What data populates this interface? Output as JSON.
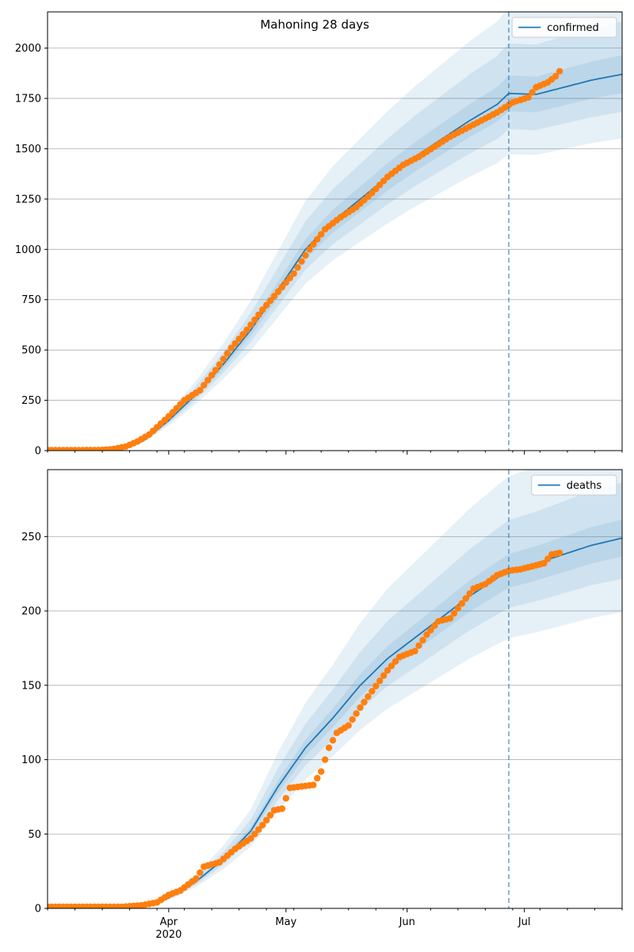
{
  "chart_data": [
    {
      "type": "line",
      "title": "Mahoning 28 days",
      "xlabel": "",
      "ylabel": "",
      "ylim": [
        0,
        2180
      ],
      "xlim": [
        "2020-03-01",
        "2020-07-26"
      ],
      "y_ticks": [
        0,
        250,
        500,
        750,
        1000,
        1250,
        1500,
        1750,
        2000
      ],
      "x_tick_labels": [
        {
          "date": "2020-04-01",
          "label": "Apr",
          "sublabel": "2020"
        },
        {
          "date": "2020-05-01",
          "label": "May",
          "sublabel": ""
        },
        {
          "date": "2020-06-01",
          "label": "Jun",
          "sublabel": ""
        },
        {
          "date": "2020-07-01",
          "label": "Jul",
          "sublabel": ""
        }
      ],
      "grid": "horizontal",
      "legend": {
        "position": "top-right",
        "entries": [
          "confirmed"
        ]
      },
      "forecast_start": "2020-06-27",
      "series": [
        {
          "name": "confirmed",
          "kind": "model-median",
          "color": "#1f77b4",
          "points": [
            [
              "2020-03-01",
              0
            ],
            [
              "2020-03-15",
              2
            ],
            [
              "2020-03-22",
              18
            ],
            [
              "2020-03-26",
              55
            ],
            [
              "2020-04-01",
              150
            ],
            [
              "2020-04-08",
              280
            ],
            [
              "2020-04-15",
              430
            ],
            [
              "2020-04-22",
              600
            ],
            [
              "2020-04-29",
              800
            ],
            [
              "2020-05-06",
              1000
            ],
            [
              "2020-05-13",
              1140
            ],
            [
              "2020-05-20",
              1250
            ],
            [
              "2020-05-27",
              1360
            ],
            [
              "2020-06-03",
              1460
            ],
            [
              "2020-06-10",
              1550
            ],
            [
              "2020-06-17",
              1640
            ],
            [
              "2020-06-24",
              1720
            ],
            [
              "2020-06-27",
              1775
            ],
            [
              "2020-07-04",
              1770
            ],
            [
              "2020-07-11",
              1805
            ],
            [
              "2020-07-18",
              1840
            ],
            [
              "2020-07-26",
              1870
            ]
          ],
          "bands": [
            {
              "level": "inner",
              "lower_pct": -5,
              "upper_pct": 5
            },
            {
              "level": "middle",
              "lower_pct": -10,
              "upper_pct": 14
            },
            {
              "level": "outer",
              "lower_pct": -17,
              "upper_pct": 24
            }
          ]
        },
        {
          "name": "confirmed",
          "kind": "observed",
          "color": "#ff7f0e",
          "points": [
            [
              "2020-03-01",
              2
            ],
            [
              "2020-03-08",
              2
            ],
            [
              "2020-03-15",
              3
            ],
            [
              "2020-03-18",
              8
            ],
            [
              "2020-03-21",
              20
            ],
            [
              "2020-03-24",
              45
            ],
            [
              "2020-03-27",
              80
            ],
            [
              "2020-04-01",
              170
            ],
            [
              "2020-04-05",
              250
            ],
            [
              "2020-04-09",
              300
            ],
            [
              "2020-04-13",
              400
            ],
            [
              "2020-04-17",
              510
            ],
            [
              "2020-04-21",
              600
            ],
            [
              "2020-04-25",
              700
            ],
            [
              "2020-04-29",
              790
            ],
            [
              "2020-05-03",
              880
            ],
            [
              "2020-05-07",
              1000
            ],
            [
              "2020-05-11",
              1100
            ],
            [
              "2020-05-15",
              1160
            ],
            [
              "2020-05-19",
              1210
            ],
            [
              "2020-05-23",
              1280
            ],
            [
              "2020-05-27",
              1360
            ],
            [
              "2020-05-31",
              1420
            ],
            [
              "2020-06-04",
              1460
            ],
            [
              "2020-06-08",
              1510
            ],
            [
              "2020-06-12",
              1560
            ],
            [
              "2020-06-16",
              1600
            ],
            [
              "2020-06-20",
              1640
            ],
            [
              "2020-06-24",
              1680
            ],
            [
              "2020-06-28",
              1730
            ],
            [
              "2020-07-02",
              1755
            ],
            [
              "2020-07-04",
              1805
            ],
            [
              "2020-07-07",
              1830
            ],
            [
              "2020-07-09",
              1860
            ],
            [
              "2020-07-10",
              1885
            ]
          ]
        }
      ]
    },
    {
      "type": "line",
      "title": "",
      "xlabel": "",
      "ylabel": "",
      "ylim": [
        0,
        295
      ],
      "xlim": [
        "2020-03-01",
        "2020-07-26"
      ],
      "y_ticks": [
        0,
        50,
        100,
        150,
        200,
        250
      ],
      "x_tick_labels": [
        {
          "date": "2020-04-01",
          "label": "Apr",
          "sublabel": "2020"
        },
        {
          "date": "2020-05-01",
          "label": "May",
          "sublabel": ""
        },
        {
          "date": "2020-06-01",
          "label": "Jun",
          "sublabel": ""
        },
        {
          "date": "2020-07-01",
          "label": "Jul",
          "sublabel": ""
        }
      ],
      "grid": "horizontal",
      "legend": {
        "position": "top-right",
        "entries": [
          "deaths"
        ]
      },
      "forecast_start": "2020-06-27",
      "series": [
        {
          "name": "deaths",
          "kind": "model-median",
          "color": "#1f77b4",
          "points": [
            [
              "2020-03-01",
              0
            ],
            [
              "2020-03-15",
              1
            ],
            [
              "2020-03-22",
              2
            ],
            [
              "2020-03-27",
              3
            ],
            [
              "2020-04-01",
              7
            ],
            [
              "2020-04-08",
              18
            ],
            [
              "2020-04-15",
              33
            ],
            [
              "2020-04-22",
              52
            ],
            [
              "2020-04-29",
              82
            ],
            [
              "2020-05-06",
              108
            ],
            [
              "2020-05-13",
              128
            ],
            [
              "2020-05-20",
              150
            ],
            [
              "2020-05-27",
              168
            ],
            [
              "2020-06-03",
              182
            ],
            [
              "2020-06-10",
              196
            ],
            [
              "2020-06-17",
              210
            ],
            [
              "2020-06-24",
              222
            ],
            [
              "2020-06-27",
              227
            ],
            [
              "2020-07-04",
              232
            ],
            [
              "2020-07-11",
              238
            ],
            [
              "2020-07-18",
              244
            ],
            [
              "2020-07-26",
              249
            ]
          ],
          "bands": [
            {
              "level": "inner",
              "lower_pct": -5,
              "upper_pct": 5
            },
            {
              "level": "middle",
              "lower_pct": -11,
              "upper_pct": 15
            },
            {
              "level": "outer",
              "lower_pct": -20,
              "upper_pct": 28
            }
          ]
        },
        {
          "name": "deaths",
          "kind": "observed",
          "color": "#ff7f0e",
          "points": [
            [
              "2020-03-01",
              1
            ],
            [
              "2020-03-10",
              1
            ],
            [
              "2020-03-20",
              1
            ],
            [
              "2020-03-25",
              2
            ],
            [
              "2020-03-29",
              4
            ],
            [
              "2020-04-01",
              9
            ],
            [
              "2020-04-04",
              12
            ],
            [
              "2020-04-08",
              20
            ],
            [
              "2020-04-10",
              28
            ],
            [
              "2020-04-14",
              31
            ],
            [
              "2020-04-18",
              40
            ],
            [
              "2020-04-22",
              47
            ],
            [
              "2020-04-25",
              56
            ],
            [
              "2020-04-28",
              66
            ],
            [
              "2020-04-30",
              67
            ],
            [
              "2020-05-02",
              81
            ],
            [
              "2020-05-05",
              82
            ],
            [
              "2020-05-08",
              83
            ],
            [
              "2020-05-10",
              92
            ],
            [
              "2020-05-12",
              108
            ],
            [
              "2020-05-14",
              118
            ],
            [
              "2020-05-17",
              123
            ],
            [
              "2020-05-20",
              135
            ],
            [
              "2020-05-23",
              146
            ],
            [
              "2020-05-27",
              160
            ],
            [
              "2020-05-30",
              169
            ],
            [
              "2020-06-03",
              173
            ],
            [
              "2020-06-06",
              184
            ],
            [
              "2020-06-09",
              193
            ],
            [
              "2020-06-12",
              195
            ],
            [
              "2020-06-15",
              205
            ],
            [
              "2020-06-18",
              215
            ],
            [
              "2020-06-21",
              218
            ],
            [
              "2020-06-24",
              224
            ],
            [
              "2020-06-27",
              227
            ],
            [
              "2020-06-30",
              228
            ],
            [
              "2020-07-03",
              230
            ],
            [
              "2020-07-06",
              232
            ],
            [
              "2020-07-08",
              238
            ],
            [
              "2020-07-10",
              239
            ]
          ]
        }
      ]
    }
  ]
}
